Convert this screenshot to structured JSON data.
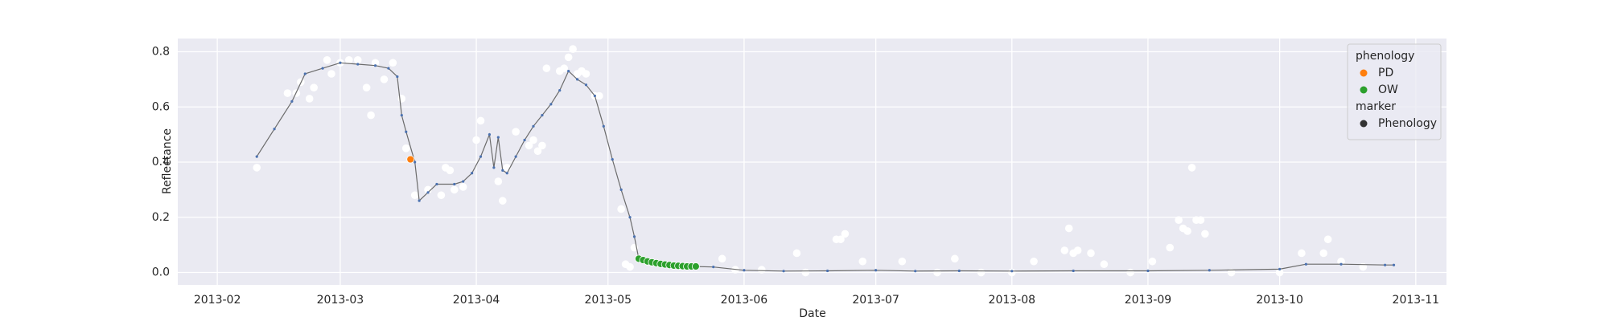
{
  "chart_data": {
    "type": "line",
    "x_label": "Date",
    "y_label": "Reflectance",
    "xlim": [
      "2013-01-23",
      "2013-11-08"
    ],
    "xticks": [
      {
        "value": "2013-02-01",
        "label": "2013-02"
      },
      {
        "value": "2013-03-01",
        "label": "2013-03"
      },
      {
        "value": "2013-04-01",
        "label": "2013-04"
      },
      {
        "value": "2013-05-01",
        "label": "2013-05"
      },
      {
        "value": "2013-06-01",
        "label": "2013-06"
      },
      {
        "value": "2013-07-01",
        "label": "2013-07"
      },
      {
        "value": "2013-08-01",
        "label": "2013-08"
      },
      {
        "value": "2013-09-01",
        "label": "2013-09"
      },
      {
        "value": "2013-10-01",
        "label": "2013-10"
      },
      {
        "value": "2013-11-01",
        "label": "2013-11"
      }
    ],
    "ylim": [
      -0.045,
      0.848
    ],
    "yticks": [
      {
        "value": 0,
        "label": "0.0"
      },
      0.2,
      0.4,
      0.6,
      0.8
    ],
    "grid": true,
    "series": [
      {
        "type": "scatter",
        "color": "#ffffff",
        "x": [
          "2013-02-10",
          "2013-02-17",
          "2013-02-19",
          "2013-02-20",
          "2013-02-22",
          "2013-02-23",
          "2013-02-26",
          "2013-02-27",
          "2013-03-01",
          "2013-03-03",
          "2013-03-05",
          "2013-03-07",
          "2013-03-08",
          "2013-03-09",
          "2013-03-11",
          "2013-03-13",
          "2013-03-15",
          "2013-03-16",
          "2013-03-18",
          "2013-03-21",
          "2013-03-24",
          "2013-03-25",
          "2013-03-26",
          "2013-03-27",
          "2013-03-29",
          "2013-04-01",
          "2013-04-02",
          "2013-04-06",
          "2013-04-07",
          "2013-04-08",
          "2013-04-10",
          "2013-04-13",
          "2013-04-14",
          "2013-04-15",
          "2013-04-16",
          "2013-04-17",
          "2013-04-20",
          "2013-04-21",
          "2013-04-22",
          "2013-04-23",
          "2013-04-24",
          "2013-04-25",
          "2013-04-26",
          "2013-04-28",
          "2013-04-29",
          "2013-05-04",
          "2013-05-05",
          "2013-05-06",
          "2013-05-07",
          "2013-05-27",
          "2013-05-30",
          "2013-06-05",
          "2013-06-13",
          "2013-06-15",
          "2013-06-22",
          "2013-06-23",
          "2013-06-24",
          "2013-06-28",
          "2013-07-07",
          "2013-07-15",
          "2013-07-19",
          "2013-07-25",
          "2013-08-01",
          "2013-08-06",
          "2013-08-13",
          "2013-08-14",
          "2013-08-15",
          "2013-08-16",
          "2013-08-19",
          "2013-08-22",
          "2013-08-28",
          "2013-09-02",
          "2013-09-06",
          "2013-09-08",
          "2013-09-09",
          "2013-09-10",
          "2013-09-11",
          "2013-09-12",
          "2013-09-13",
          "2013-09-14",
          "2013-09-20",
          "2013-10-01",
          "2013-10-06",
          "2013-10-11",
          "2013-10-12",
          "2013-10-15",
          "2013-10-20"
        ],
        "values": [
          0.38,
          0.65,
          0.65,
          0.69,
          0.63,
          0.67,
          0.77,
          0.72,
          0.76,
          0.77,
          0.77,
          0.67,
          0.57,
          0.76,
          0.7,
          0.76,
          0.63,
          0.45,
          0.28,
          0.3,
          0.28,
          0.38,
          0.37,
          0.3,
          0.31,
          0.48,
          0.55,
          0.33,
          0.26,
          0.38,
          0.51,
          0.46,
          0.48,
          0.44,
          0.46,
          0.74,
          0.73,
          0.74,
          0.78,
          0.81,
          0.72,
          0.73,
          0.72,
          0.64,
          0.64,
          0.23,
          0.03,
          0.02,
          0.09,
          0.05,
          0.01,
          0.01,
          0.07,
          0.0,
          0.12,
          0.12,
          0.14,
          0.04,
          0.04,
          0.0,
          0.05,
          0.0,
          0.0,
          0.04,
          0.08,
          0.16,
          0.07,
          0.08,
          0.07,
          0.03,
          0.0,
          0.04,
          0.09,
          0.19,
          0.16,
          0.15,
          0.38,
          0.19,
          0.19,
          0.14,
          0.0,
          0.0,
          0.07,
          0.07,
          0.12,
          0.04,
          0.02
        ]
      },
      {
        "type": "line",
        "color": "#6b6b6b",
        "marker_color": "#4c72b0",
        "x": [
          "2013-02-10",
          "2013-02-14",
          "2013-02-18",
          "2013-02-21",
          "2013-02-25",
          "2013-03-01",
          "2013-03-05",
          "2013-03-09",
          "2013-03-12",
          "2013-03-14",
          "2013-03-15",
          "2013-03-16",
          "2013-03-18",
          "2013-03-19",
          "2013-03-21",
          "2013-03-23",
          "2013-03-27",
          "2013-03-29",
          "2013-03-31",
          "2013-04-02",
          "2013-04-04",
          "2013-04-05",
          "2013-04-06",
          "2013-04-07",
          "2013-04-08",
          "2013-04-10",
          "2013-04-12",
          "2013-04-14",
          "2013-04-16",
          "2013-04-18",
          "2013-04-20",
          "2013-04-22",
          "2013-04-24",
          "2013-04-26",
          "2013-04-28",
          "2013-04-30",
          "2013-05-02",
          "2013-05-04",
          "2013-05-06",
          "2013-05-07",
          "2013-05-08",
          "2013-05-10",
          "2013-05-13",
          "2013-05-16",
          "2013-05-20",
          "2013-05-25",
          "2013-06-01",
          "2013-06-10",
          "2013-06-20",
          "2013-07-01",
          "2013-07-10",
          "2013-07-20",
          "2013-08-01",
          "2013-08-15",
          "2013-09-01",
          "2013-09-15",
          "2013-10-01",
          "2013-10-07",
          "2013-10-15",
          "2013-10-25",
          "2013-10-27"
        ],
        "values": [
          0.42,
          0.52,
          0.62,
          0.72,
          0.74,
          0.76,
          0.755,
          0.75,
          0.74,
          0.71,
          0.57,
          0.51,
          0.4,
          0.26,
          0.29,
          0.32,
          0.32,
          0.33,
          0.36,
          0.42,
          0.5,
          0.38,
          0.49,
          0.37,
          0.36,
          0.42,
          0.48,
          0.53,
          0.57,
          0.61,
          0.66,
          0.73,
          0.7,
          0.68,
          0.64,
          0.53,
          0.41,
          0.3,
          0.2,
          0.13,
          0.05,
          0.04,
          0.03,
          0.025,
          0.022,
          0.02,
          0.008,
          0.005,
          0.006,
          0.008,
          0.005,
          0.006,
          0.005,
          0.006,
          0.006,
          0.008,
          0.012,
          0.03,
          0.03,
          0.027,
          0.027
        ]
      },
      {
        "type": "scatter",
        "name": "PD",
        "color": "#ff7f0e",
        "x": [
          "2013-03-17"
        ],
        "values": [
          0.41
        ]
      },
      {
        "type": "scatter",
        "name": "OW",
        "color": "#2ca02c",
        "x": [
          "2013-05-08",
          "2013-05-09",
          "2013-05-10",
          "2013-05-11",
          "2013-05-12",
          "2013-05-13",
          "2013-05-14",
          "2013-05-15",
          "2013-05-16",
          "2013-05-17",
          "2013-05-18",
          "2013-05-19",
          "2013-05-20",
          "2013-05-21"
        ],
        "values": [
          0.05,
          0.045,
          0.04,
          0.037,
          0.034,
          0.031,
          0.029,
          0.027,
          0.025,
          0.024,
          0.023,
          0.022,
          0.022,
          0.022
        ]
      }
    ],
    "legend": {
      "position": "upper right",
      "hue_title": "phenology",
      "style_title": "marker",
      "style_entries": [
        {
          "name": "Phenology",
          "color": "#333333"
        }
      ]
    }
  }
}
